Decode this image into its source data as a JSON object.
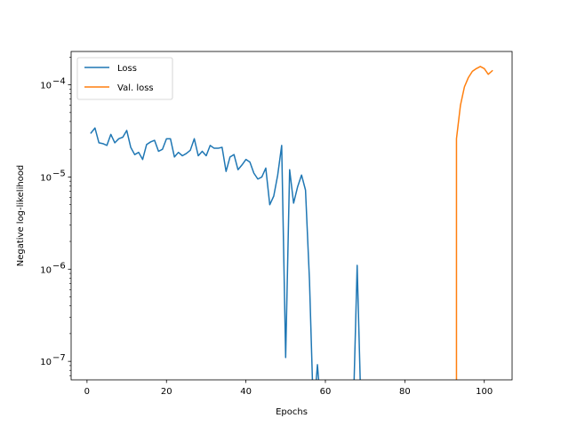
{
  "chart_data": {
    "type": "line",
    "xlabel": "Epochs",
    "ylabel": "Negative log-likelihood",
    "yscale": "log",
    "xlim": [
      -4,
      107
    ],
    "ylim": [
      6.3e-08,
      0.00023
    ],
    "x_ticks": [
      0,
      20,
      40,
      60,
      80,
      100
    ],
    "y_ticks": [
      {
        "value": 1e-07,
        "base": "10",
        "exp": "−7"
      },
      {
        "value": 1e-06,
        "base": "10",
        "exp": "−6"
      },
      {
        "value": 1e-05,
        "base": "10",
        "exp": "−5"
      },
      {
        "value": 0.0001,
        "base": "10",
        "exp": "−4"
      }
    ],
    "grid": false,
    "legend_position": "upper-left",
    "series": [
      {
        "name": "Loss",
        "color": "#1f77b4",
        "points": [
          [
            1,
            3e-05
          ],
          [
            2,
            3.4e-05
          ],
          [
            3,
            2.35e-05
          ],
          [
            4,
            2.3e-05
          ],
          [
            5,
            2.2e-05
          ],
          [
            6,
            2.9e-05
          ],
          [
            7,
            2.35e-05
          ],
          [
            8,
            2.6e-05
          ],
          [
            9,
            2.7e-05
          ],
          [
            10,
            3.2e-05
          ],
          [
            11,
            2.1e-05
          ],
          [
            12,
            1.75e-05
          ],
          [
            13,
            1.85e-05
          ],
          [
            14,
            1.55e-05
          ],
          [
            15,
            2.25e-05
          ],
          [
            16,
            2.4e-05
          ],
          [
            17,
            2.5e-05
          ],
          [
            18,
            1.9e-05
          ],
          [
            19,
            2e-05
          ],
          [
            20,
            2.6e-05
          ],
          [
            21,
            2.6e-05
          ],
          [
            22,
            1.65e-05
          ],
          [
            23,
            1.85e-05
          ],
          [
            24,
            1.7e-05
          ],
          [
            25,
            1.8e-05
          ],
          [
            26,
            1.95e-05
          ],
          [
            27,
            2.6e-05
          ],
          [
            28,
            1.7e-05
          ],
          [
            29,
            1.9e-05
          ],
          [
            30,
            1.7e-05
          ],
          [
            31,
            2.2e-05
          ],
          [
            32,
            2.05e-05
          ],
          [
            33,
            2.05e-05
          ],
          [
            34,
            2.1e-05
          ],
          [
            35,
            1.15e-05
          ],
          [
            36,
            1.65e-05
          ],
          [
            37,
            1.75e-05
          ],
          [
            38,
            1.2e-05
          ],
          [
            39,
            1.35e-05
          ],
          [
            40,
            1.55e-05
          ],
          [
            41,
            1.45e-05
          ],
          [
            42,
            1.1e-05
          ],
          [
            43,
            9.5e-06
          ],
          [
            44,
            1e-05
          ],
          [
            45,
            1.25e-05
          ],
          [
            46,
            5e-06
          ],
          [
            47,
            6.2e-06
          ],
          [
            48,
            1.05e-05
          ],
          [
            49,
            2.2e-05
          ],
          [
            50,
            1.1e-07
          ],
          [
            51,
            1.2e-05
          ],
          [
            52,
            5.2e-06
          ],
          [
            53,
            7.8e-06
          ],
          [
            54,
            1.05e-05
          ],
          [
            55,
            7.2e-06
          ],
          [
            56,
            7.5e-07
          ],
          [
            57,
            0
          ],
          [
            58,
            9.2e-08
          ],
          [
            59,
            0
          ],
          [
            67,
            0
          ],
          [
            68,
            1.1e-06
          ],
          [
            69,
            0
          ]
        ]
      },
      {
        "name": "Val. loss",
        "color": "#ff7f0e",
        "points": [
          [
            93,
            0
          ],
          [
            93,
            2.6e-05
          ],
          [
            94,
            6e-05
          ],
          [
            95,
            9.5e-05
          ],
          [
            96,
            0.00012
          ],
          [
            97,
            0.00014
          ],
          [
            98,
            0.00015
          ],
          [
            99,
            0.000158
          ],
          [
            100,
            0.00015
          ],
          [
            101,
            0.00013
          ],
          [
            102,
            0.000142
          ]
        ]
      }
    ]
  }
}
